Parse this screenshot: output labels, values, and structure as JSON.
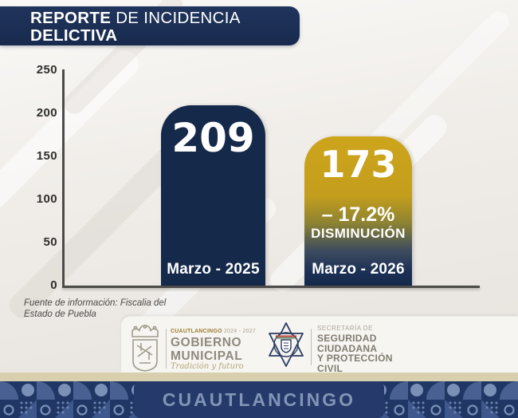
{
  "header": {
    "title_bold": "REPORTE",
    "title_rest": " DE INCIDENCIA",
    "title_line2": "DELICTIVA"
  },
  "chart_data": {
    "type": "bar",
    "title": "Reporte de incidencia delictiva",
    "categories": [
      "Marzo - 2025",
      "Marzo - 2026"
    ],
    "values": [
      209,
      173
    ],
    "ylim": [
      0,
      250
    ],
    "yticks": [
      0,
      50,
      100,
      150,
      200,
      250
    ],
    "ytick_labels": [
      "250",
      "200",
      "150",
      "100",
      "50",
      "0"
    ],
    "grid": false,
    "legend": false,
    "bar_colors": [
      "#15294b",
      "gradient #cda41b to #15294b"
    ],
    "annotation": {
      "delta": "– 17.2%",
      "delta_label": "DISMINUCIÓN"
    }
  },
  "bars": [
    {
      "value": "209",
      "category": "Marzo - 2025"
    },
    {
      "value": "173",
      "delta": "– 17.2%",
      "delta_label": "DISMINUCIÓN",
      "category": "Marzo - 2026"
    }
  ],
  "source_note": {
    "line1": "Fuente de información: Fiscalia del",
    "line2": "Estado de Puebla"
  },
  "logos": {
    "municipal": {
      "name_small": "CUAUTLANCINGO",
      "years": "2024 - 2027",
      "line1": "GOBIERNO",
      "line2": "MUNICIPAL",
      "tagline": "Tradición y futuro"
    },
    "secretaria": {
      "small": "SECRETARÍA DE",
      "line1": "SEGURIDAD",
      "line2": "CIUDADANA",
      "line3": "Y PROTECCIÓN",
      "line4": "CIVIL"
    }
  },
  "footer": {
    "text": "CUAUTLANCINGO"
  },
  "colors": {
    "header_navy": "#1b2d52",
    "bar_navy": "#15294b",
    "gold": "#cda41b",
    "axis": "#4c4b49",
    "background": "#edeae5",
    "tan_band": "#d7cfad",
    "footer_navy": "#203765",
    "footer_text": "#8295b6"
  }
}
